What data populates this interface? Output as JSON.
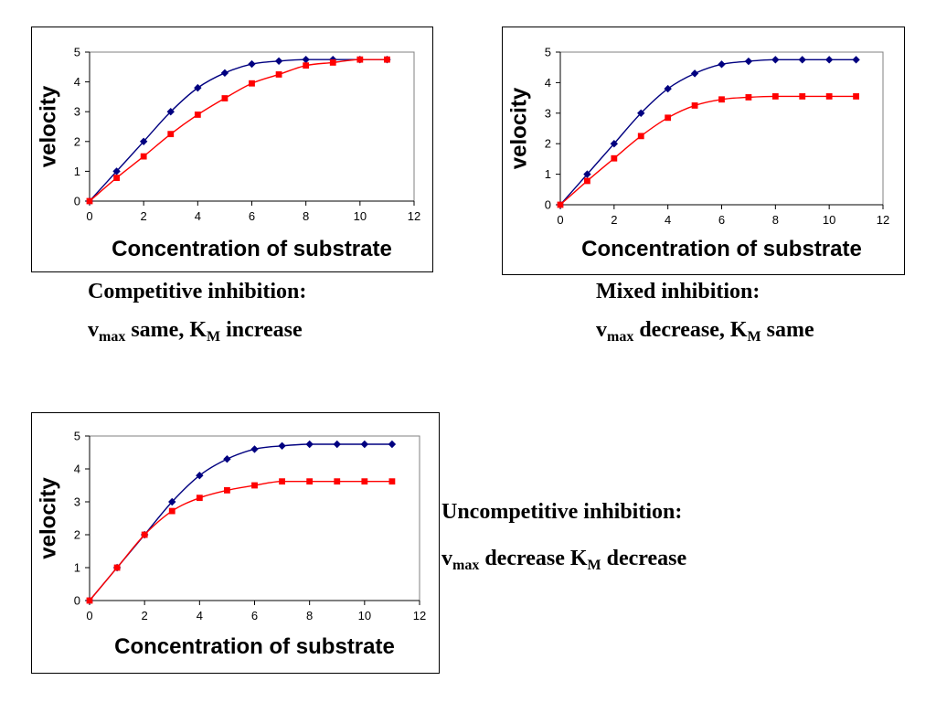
{
  "chart_data": [
    {
      "type": "line",
      "xlabel": "Concentration of substrate",
      "ylabel": "velocity",
      "xlim": [
        0,
        12
      ],
      "ylim": [
        0,
        5
      ],
      "xticks": [
        0,
        2,
        4,
        6,
        8,
        10,
        12
      ],
      "yticks": [
        0,
        1,
        2,
        3,
        4,
        5
      ],
      "grid": false,
      "series": [
        {
          "color": "#000080",
          "marker": "diamond",
          "x": [
            0,
            1,
            2,
            3,
            4,
            5,
            6,
            7,
            8,
            9,
            10,
            11
          ],
          "values": [
            0,
            1.0,
            2.0,
            3.0,
            3.8,
            4.3,
            4.6,
            4.7,
            4.75,
            4.75,
            4.75,
            4.75
          ]
        },
        {
          "color": "#ff0000",
          "marker": "square",
          "x": [
            0,
            1,
            2,
            3,
            4,
            5,
            6,
            7,
            8,
            9,
            10,
            11
          ],
          "values": [
            0,
            0.78,
            1.5,
            2.25,
            2.9,
            3.45,
            3.95,
            4.25,
            4.55,
            4.65,
            4.75,
            4.75
          ]
        }
      ]
    },
    {
      "type": "line",
      "xlabel": "Concentration of substrate",
      "ylabel": "velocity",
      "xlim": [
        0,
        12
      ],
      "ylim": [
        0,
        5
      ],
      "xticks": [
        0,
        2,
        4,
        6,
        8,
        10,
        12
      ],
      "yticks": [
        0,
        1,
        2,
        3,
        4,
        5
      ],
      "grid": false,
      "series": [
        {
          "color": "#000080",
          "marker": "diamond",
          "x": [
            0,
            1,
            2,
            3,
            4,
            5,
            6,
            7,
            8,
            9,
            10,
            11
          ],
          "values": [
            0,
            1.0,
            2.0,
            3.0,
            3.8,
            4.3,
            4.6,
            4.7,
            4.75,
            4.75,
            4.75,
            4.75
          ]
        },
        {
          "color": "#ff0000",
          "marker": "square",
          "x": [
            0,
            1,
            2,
            3,
            4,
            5,
            6,
            7,
            8,
            9,
            10,
            11
          ],
          "values": [
            0,
            0.78,
            1.52,
            2.25,
            2.85,
            3.25,
            3.45,
            3.52,
            3.55,
            3.55,
            3.55,
            3.55
          ]
        }
      ]
    },
    {
      "type": "line",
      "xlabel": "Concentration of substrate",
      "ylabel": "velocity",
      "xlim": [
        0,
        12
      ],
      "ylim": [
        0,
        5
      ],
      "xticks": [
        0,
        2,
        4,
        6,
        8,
        10,
        12
      ],
      "yticks": [
        0,
        1,
        2,
        3,
        4,
        5
      ],
      "grid": false,
      "series": [
        {
          "color": "#000080",
          "marker": "diamond",
          "x": [
            0,
            1,
            2,
            3,
            4,
            5,
            6,
            7,
            8,
            9,
            10,
            11
          ],
          "values": [
            0,
            1.0,
            2.0,
            3.0,
            3.8,
            4.3,
            4.6,
            4.7,
            4.75,
            4.75,
            4.75,
            4.75
          ]
        },
        {
          "color": "#ff0000",
          "marker": "square",
          "x": [
            0,
            1,
            2,
            3,
            4,
            5,
            6,
            7,
            8,
            9,
            10,
            11
          ],
          "values": [
            0,
            1.0,
            2.0,
            2.72,
            3.12,
            3.35,
            3.5,
            3.62,
            3.62,
            3.62,
            3.62,
            3.62
          ]
        }
      ]
    }
  ],
  "captions": {
    "competitive": {
      "title": "Competitive inhibition:",
      "v": "v",
      "v_sub": "max",
      "mid": " same, K",
      "k_sub": "M",
      "end": " increase"
    },
    "mixed": {
      "title": "Mixed inhibition:",
      "v": "v",
      "v_sub": "max",
      "mid": " decrease, K",
      "k_sub": "M",
      "end": " same"
    },
    "uncompetitive": {
      "title": "Uncompetitive inhibition:",
      "v": "v",
      "v_sub": "max",
      "mid": " decrease K",
      "k_sub": "M",
      "end": " decrease"
    }
  }
}
